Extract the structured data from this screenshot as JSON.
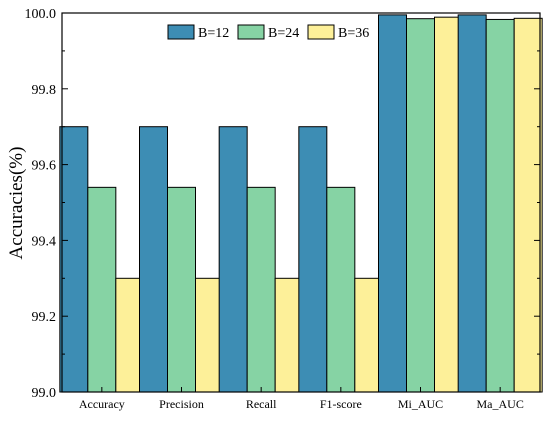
{
  "chart_data": {
    "type": "bar",
    "categories": [
      "Accuracy",
      "Precision",
      "Recall",
      "F1-score",
      "Mi_AUC",
      "Ma_AUC"
    ],
    "series": [
      {
        "name": "B=12",
        "values": [
          99.7,
          99.7,
          99.7,
          99.7,
          99.995,
          99.995
        ]
      },
      {
        "name": "B=24",
        "values": [
          99.54,
          99.54,
          99.54,
          99.54,
          99.985,
          99.983
        ]
      },
      {
        "name": "B=36",
        "values": [
          99.3,
          99.3,
          99.3,
          99.3,
          99.989,
          99.986
        ]
      }
    ],
    "title": "",
    "xlabel": "",
    "ylabel": "Accuracies(%)",
    "ylim": [
      99.0,
      100.0
    ],
    "yticks": [
      "99.0",
      "99.2",
      "99.4",
      "99.6",
      "99.8",
      "100.0"
    ],
    "grid": false,
    "legend_position": "top-center",
    "colors": [
      "#3d8db4",
      "#86d3a4",
      "#fdf099"
    ],
    "edge_color": "#000000"
  }
}
